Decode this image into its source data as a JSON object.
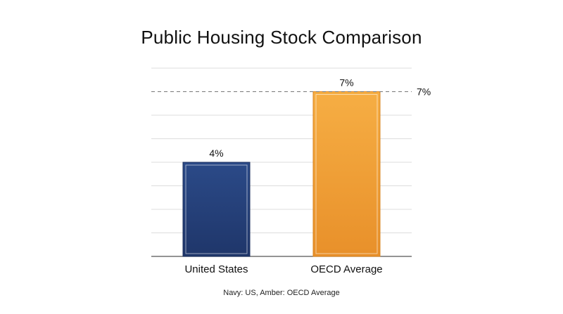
{
  "chart_data": {
    "type": "bar",
    "title": "Public Housing Stock Comparison",
    "categories": [
      "United States",
      "OECD Average"
    ],
    "values": [
      4,
      7
    ],
    "data_labels": [
      "4%",
      "7%"
    ],
    "colors": [
      "#25407a",
      "#f0a030"
    ],
    "reference_line": {
      "value": 7,
      "label": "7%",
      "style": "dashed"
    },
    "ylim": [
      0,
      8
    ],
    "grid": true,
    "xlabel": "",
    "ylabel": "",
    "caption": "Navy: US, Amber: OECD Average"
  }
}
